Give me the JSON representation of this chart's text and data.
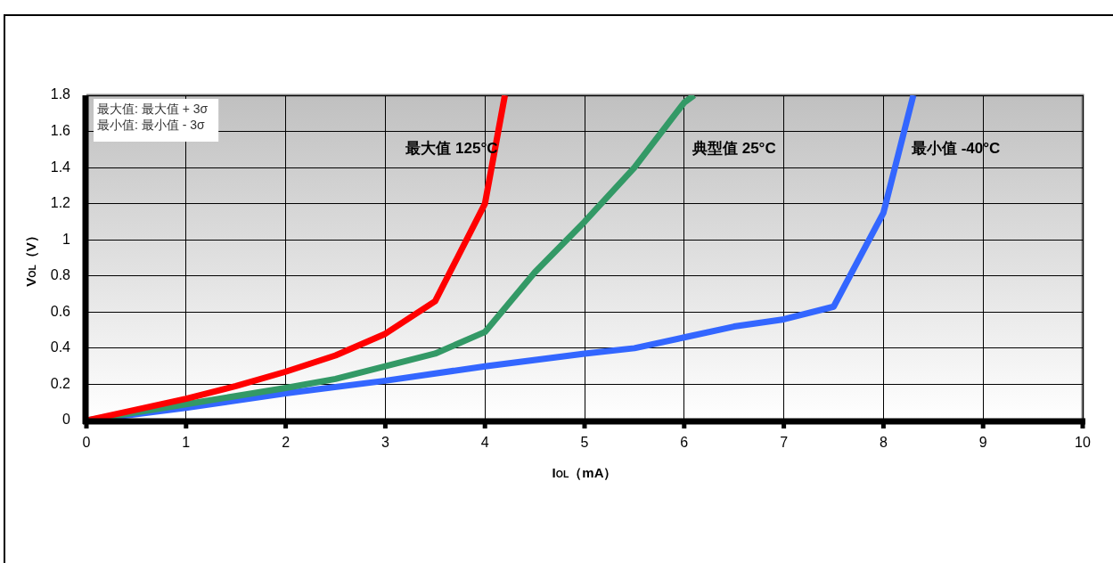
{
  "chart_data": {
    "type": "line",
    "xlabel": "I$_{OL}$（mA）",
    "ylabel": "V$_{OL}$（V）",
    "annotations": [
      "最大值: 最大值 + 3σ",
      "最小值: 最小值 - 3σ"
    ],
    "xlim": [
      0,
      10
    ],
    "xticks": [
      0,
      1,
      2,
      3,
      4,
      5,
      6,
      7,
      8,
      9,
      10
    ],
    "ylim": [
      0,
      1.8
    ],
    "yticks": [
      0,
      0.2,
      0.4,
      0.6,
      0.8,
      1,
      1.2,
      1.4,
      1.6,
      1.8
    ],
    "grid": true,
    "legend": false,
    "marker": "none",
    "line_style": "solid",
    "series": [
      {
        "name": "最大值 125°C",
        "color": "#ff0000",
        "x": [
          0,
          0.5,
          1,
          1.5,
          2,
          2.5,
          3,
          3.5,
          4,
          4.2
        ],
        "values": [
          0,
          0.06,
          0.12,
          0.19,
          0.27,
          0.36,
          0.48,
          0.66,
          1.2,
          1.8
        ]
      },
      {
        "name": "典型值 25°C",
        "color": "#339966",
        "x": [
          0,
          1,
          2,
          2.5,
          3,
          3.5,
          4,
          4.5,
          5,
          5.5,
          6,
          6.1
        ],
        "values": [
          0,
          0.09,
          0.18,
          0.23,
          0.3,
          0.37,
          0.49,
          0.82,
          1.1,
          1.4,
          1.76,
          1.8
        ]
      },
      {
        "name": "最小值 -40°C",
        "color": "#3366ff",
        "x": [
          0,
          1,
          2,
          3,
          4,
          5,
          5.5,
          6,
          6.5,
          7,
          7.5,
          8,
          8.3
        ],
        "values": [
          0,
          0.07,
          0.15,
          0.22,
          0.3,
          0.37,
          0.4,
          0.46,
          0.52,
          0.56,
          0.63,
          1.15,
          1.8
        ]
      }
    ]
  }
}
